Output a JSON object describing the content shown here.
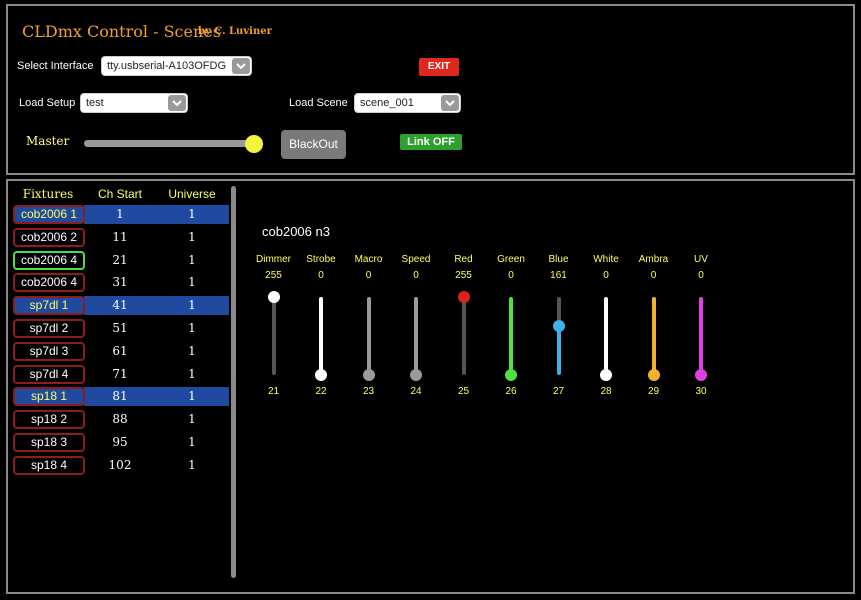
{
  "header": {
    "title": "CLDmx Control - Scenes",
    "byline": "by C. Luviner"
  },
  "interface": {
    "label": "Select Interface",
    "value": "tty.usbserial-A103OFDG"
  },
  "exit_label": "EXIT",
  "setup": {
    "label": "Load Setup",
    "value": "test"
  },
  "scene": {
    "label": "Load Scene",
    "value": "scene_001"
  },
  "master": {
    "label": "Master",
    "level": 1.0
  },
  "blackout_label": "BlackOut",
  "link_label": "Link OFF",
  "colors": {
    "accent_title": "#f0a030",
    "label_yellow": "#ffff60",
    "selected_row": "#1f4aa0",
    "exit": "#e0271d",
    "link": "#2ea02e"
  },
  "fixtures": {
    "headers": [
      "Fixtures",
      "Ch Start",
      "Universe"
    ],
    "rows": [
      {
        "name": "cob2006  1",
        "ch_start": "1",
        "universe": "1",
        "selected": true,
        "active": false
      },
      {
        "name": "cob2006  2",
        "ch_start": "11",
        "universe": "1",
        "selected": false,
        "active": false
      },
      {
        "name": "cob2006  4",
        "ch_start": "21",
        "universe": "1",
        "selected": false,
        "active": true
      },
      {
        "name": "cob2006  4",
        "ch_start": "31",
        "universe": "1",
        "selected": false,
        "active": false
      },
      {
        "name": "sp7dl  1",
        "ch_start": "41",
        "universe": "1",
        "selected": true,
        "active": false
      },
      {
        "name": "sp7dl  2",
        "ch_start": "51",
        "universe": "1",
        "selected": false,
        "active": false
      },
      {
        "name": "sp7dl  3",
        "ch_start": "61",
        "universe": "1",
        "selected": false,
        "active": false
      },
      {
        "name": "sp7dl  4",
        "ch_start": "71",
        "universe": "1",
        "selected": false,
        "active": false
      },
      {
        "name": "sp18  1",
        "ch_start": "81",
        "universe": "1",
        "selected": true,
        "active": false
      },
      {
        "name": "sp18  2",
        "ch_start": "88",
        "universe": "1",
        "selected": false,
        "active": false
      },
      {
        "name": "sp18  3",
        "ch_start": "95",
        "universe": "1",
        "selected": false,
        "active": false
      },
      {
        "name": "sp18  4",
        "ch_start": "102",
        "universe": "1",
        "selected": false,
        "active": false
      }
    ]
  },
  "current_fixture": "cob2006  n3",
  "channels": [
    {
      "name": "Dimmer",
      "value": "255",
      "channel": "21",
      "level": 1.0,
      "color": "#ffffff",
      "track": "#555555"
    },
    {
      "name": "Strobe",
      "value": "0",
      "channel": "22",
      "level": 0.0,
      "color": "#ffffff",
      "track": "#ffffff"
    },
    {
      "name": "Macro",
      "value": "0",
      "channel": "23",
      "level": 0.0,
      "color": "#9a9a9a",
      "track": "#9a9a9a"
    },
    {
      "name": "Speed",
      "value": "0",
      "channel": "24",
      "level": 0.0,
      "color": "#9a9a9a",
      "track": "#9a9a9a"
    },
    {
      "name": "Red",
      "value": "255",
      "channel": "25",
      "level": 1.0,
      "color": "#e02020",
      "track": "#555555"
    },
    {
      "name": "Green",
      "value": "0",
      "channel": "26",
      "level": 0.0,
      "color": "#50e040",
      "track": "#50e040"
    },
    {
      "name": "Blue",
      "value": "161",
      "channel": "27",
      "level": 0.63,
      "color": "#3fb0e8",
      "track": "#555555",
      "fill": "#3fb0e8"
    },
    {
      "name": "White",
      "value": "0",
      "channel": "28",
      "level": 0.0,
      "color": "#ffffff",
      "track": "#ffffff"
    },
    {
      "name": "Ambra",
      "value": "0",
      "channel": "29",
      "level": 0.0,
      "color": "#f0b030",
      "track": "#f0b030"
    },
    {
      "name": "UV",
      "value": "0",
      "channel": "30",
      "level": 0.0,
      "color": "#e040e0",
      "track": "#e040e0"
    }
  ]
}
